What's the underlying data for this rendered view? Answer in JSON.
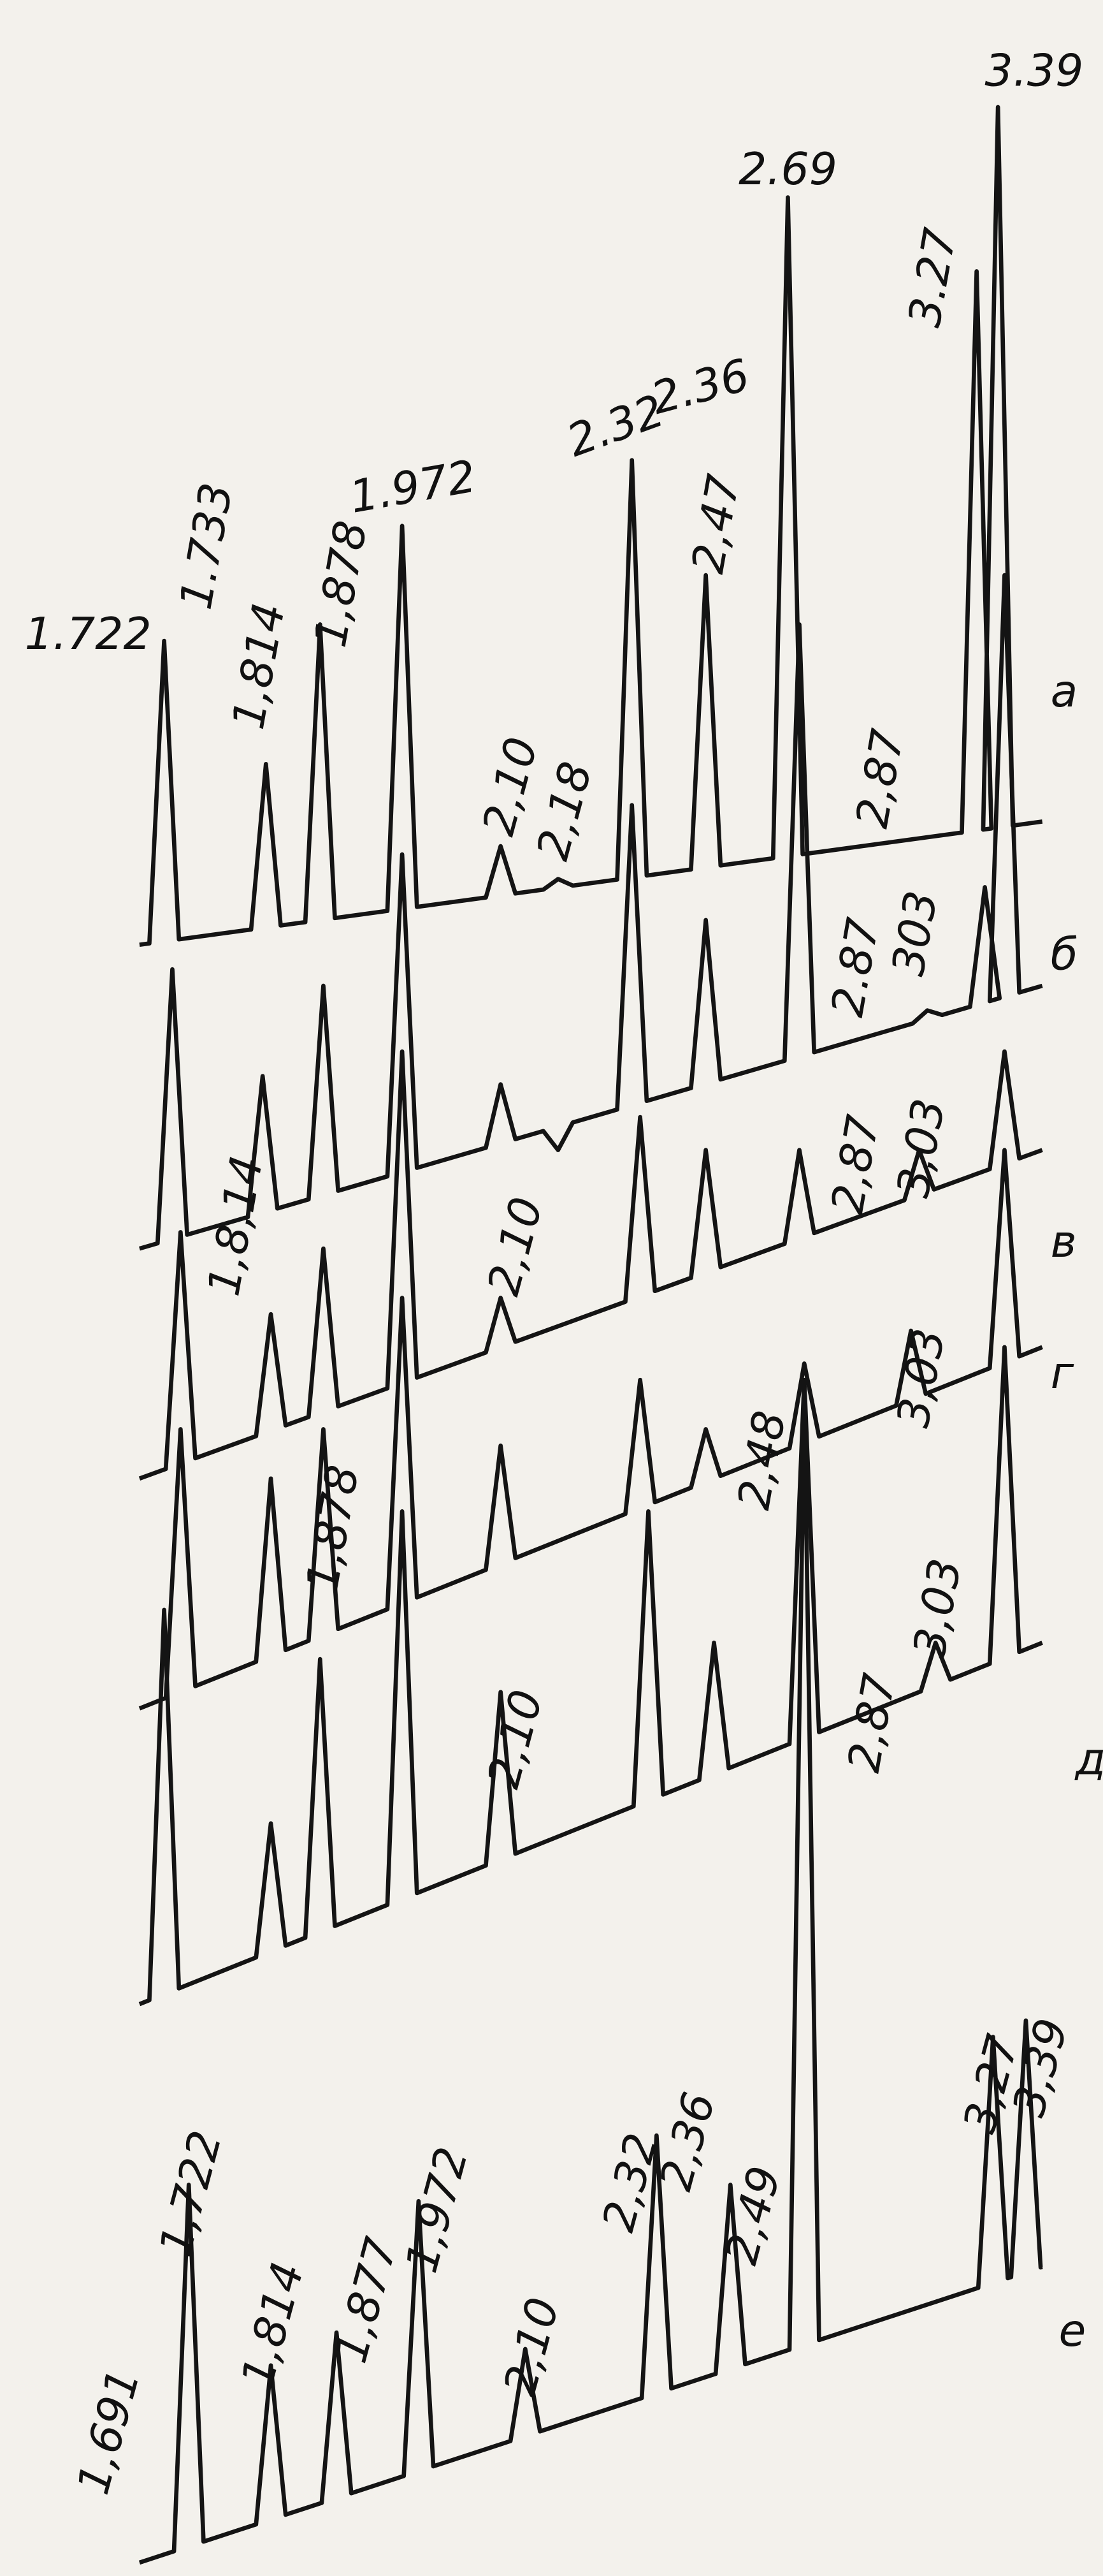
{
  "traces": [
    {
      "label": "а",
      "peaks": [
        "1.722",
        "1.733",
        "1,814",
        "1,878",
        "1.972",
        "2,10",
        "2,18",
        "2.32",
        "2.36",
        "2,47",
        "2.69",
        "3.27",
        "3.39",
        "2,87"
      ]
    },
    {
      "label": "б",
      "peaks": [
        "2.87",
        "303"
      ]
    },
    {
      "label": "в",
      "peaks": [
        "1,8,14",
        "2,10",
        "2,87",
        "3,03"
      ]
    },
    {
      "label": "г",
      "peaks": [
        "3,03"
      ]
    },
    {
      "label": "д",
      "peaks": [
        "1,878",
        "2,10",
        "2,48",
        "2,87",
        "3,03"
      ]
    },
    {
      "label": "е",
      "peaks": [
        "1,691",
        "1,722",
        "1,814",
        "1,877",
        "1,972",
        "2,10",
        "2,32",
        "2,36",
        "2,49",
        "3,27",
        "3,39"
      ]
    }
  ]
}
